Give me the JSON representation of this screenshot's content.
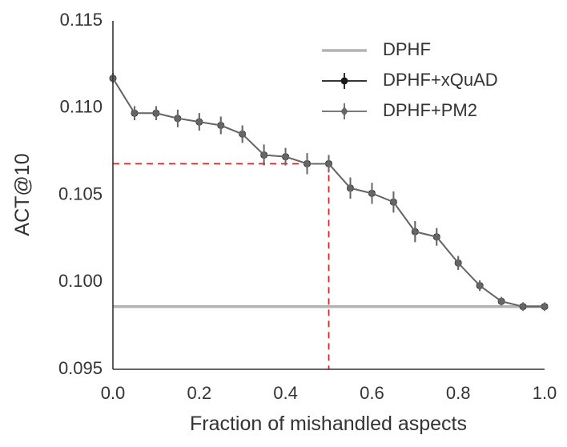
{
  "chart_data": {
    "type": "line",
    "title": "",
    "xlabel": "Fraction of mishandled aspects",
    "ylabel": "ACT@10",
    "xlim": [
      0.0,
      1.0
    ],
    "ylim": [
      0.095,
      0.115
    ],
    "x_ticks": [
      "0.0",
      "0.2",
      "0.4",
      "0.6",
      "0.8",
      "1.0"
    ],
    "y_ticks": [
      "0.095",
      "0.100",
      "0.105",
      "0.110",
      "0.115"
    ],
    "grid": false,
    "legend_position": "top-right",
    "legend": [
      "DPHF",
      "DPHF+xQuAD",
      "DPHF+PM2"
    ],
    "colors": {
      "baseline": "#b3b3b3",
      "xquad": "#1a1a1a",
      "pm2": "#666666",
      "reference": "#d62728",
      "axis": "#333333"
    },
    "series": [
      {
        "name": "DPHF",
        "style": "hline",
        "y": 0.0986
      },
      {
        "name": "DPHF+xQuAD",
        "x": [
          0.0,
          0.05,
          0.1,
          0.15,
          0.2,
          0.25,
          0.3,
          0.35,
          0.4,
          0.45,
          0.5,
          0.55,
          0.6,
          0.65,
          0.7,
          0.75,
          0.8,
          0.85,
          0.9,
          0.95,
          1.0
        ],
        "y": [
          0.1117,
          0.1097,
          0.1097,
          0.1094,
          0.1092,
          0.109,
          0.1085,
          0.1073,
          0.1072,
          0.1068,
          0.1068,
          0.1054,
          0.1051,
          0.1046,
          0.1029,
          0.1026,
          0.1011,
          0.0998,
          0.0989,
          0.0986,
          0.0986
        ],
        "err": [
          0.0003,
          0.0004,
          0.0004,
          0.0005,
          0.0005,
          0.0005,
          0.0005,
          0.0006,
          0.0005,
          0.0006,
          0.0005,
          0.0006,
          0.0006,
          0.0006,
          0.0006,
          0.0005,
          0.0004,
          0.0003,
          0.0002,
          0.0002,
          0.0002
        ]
      },
      {
        "name": "DPHF+PM2",
        "x": [
          0.0,
          0.05,
          0.1,
          0.15,
          0.2,
          0.25,
          0.3,
          0.35,
          0.4,
          0.45,
          0.5,
          0.55,
          0.6,
          0.65,
          0.7,
          0.75,
          0.8,
          0.85,
          0.9,
          0.95,
          1.0
        ],
        "y": [
          0.1117,
          0.1097,
          0.1097,
          0.1094,
          0.1092,
          0.109,
          0.1085,
          0.1073,
          0.1072,
          0.1068,
          0.1068,
          0.1054,
          0.1051,
          0.1046,
          0.1029,
          0.1026,
          0.1011,
          0.0998,
          0.0989,
          0.0986,
          0.0986
        ],
        "err": [
          0.0003,
          0.0004,
          0.0004,
          0.0005,
          0.0005,
          0.0005,
          0.0005,
          0.0006,
          0.0005,
          0.0006,
          0.0005,
          0.0006,
          0.0006,
          0.0006,
          0.0006,
          0.0005,
          0.0004,
          0.0003,
          0.0002,
          0.0002,
          0.0002
        ]
      }
    ],
    "reference_point": {
      "x": 0.5,
      "y": 0.1068,
      "style": "dashed"
    }
  }
}
